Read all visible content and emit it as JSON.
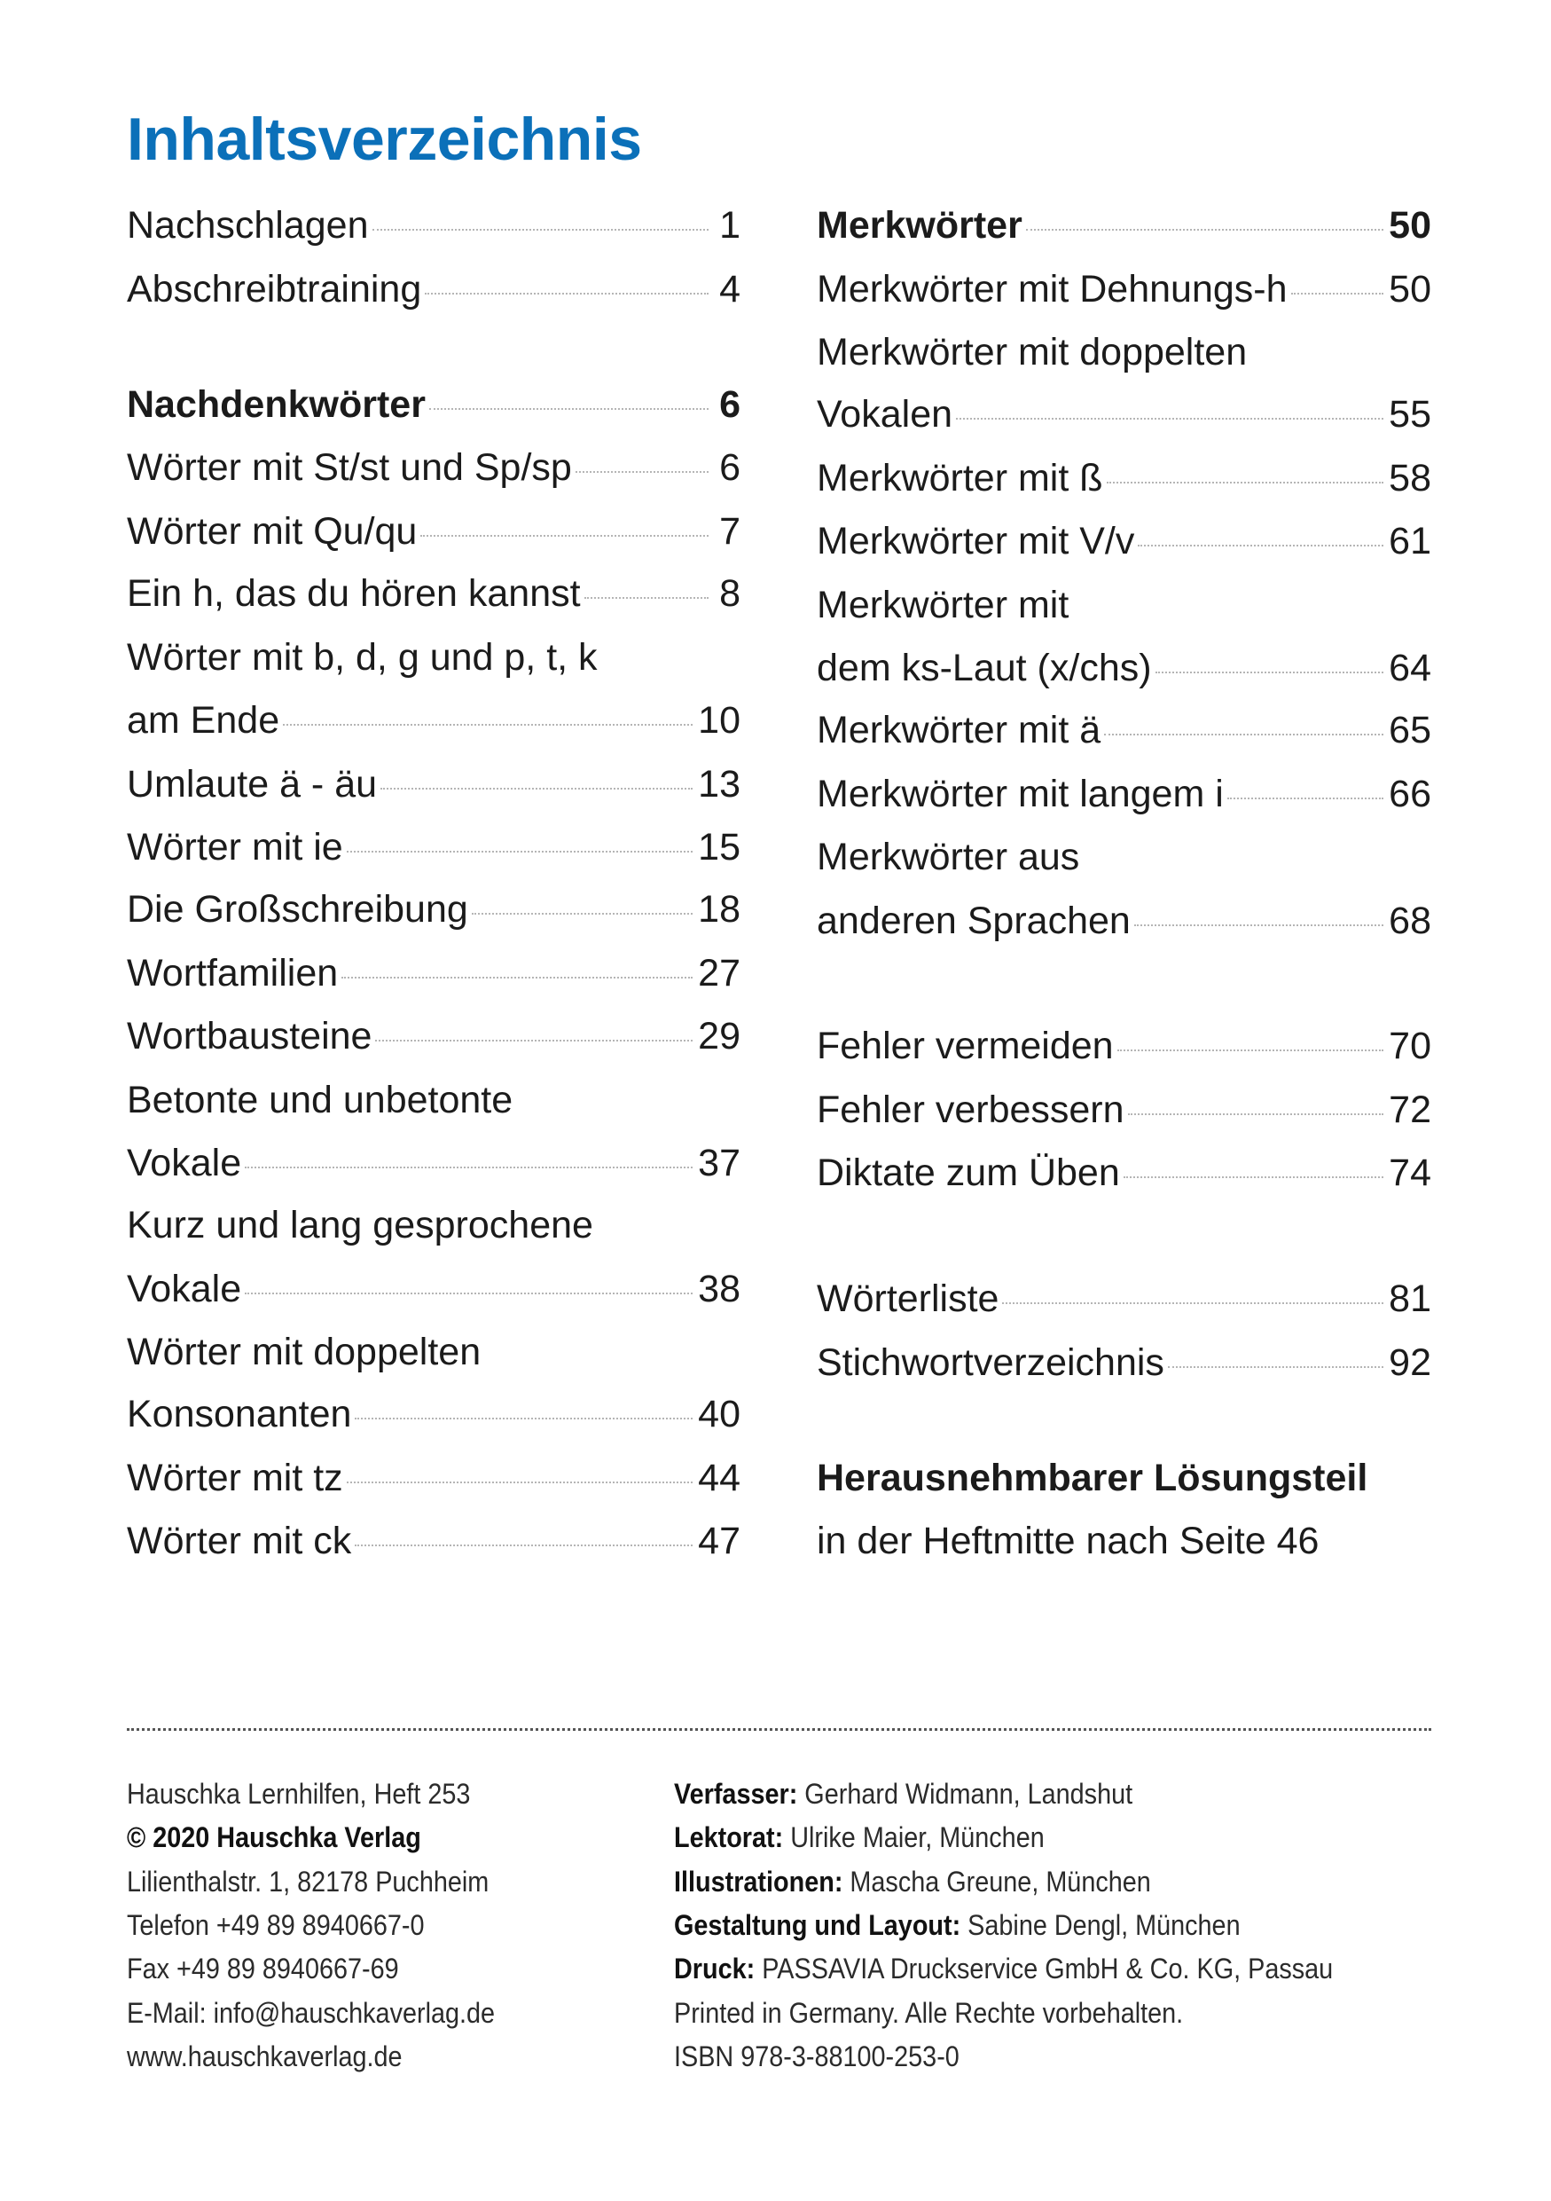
{
  "title": "Inhaltsverzeichnis",
  "toc": {
    "left": [
      {
        "lines": [
          "Nachschlagen"
        ],
        "page": "1"
      },
      {
        "lines": [
          "Abschreibtraining"
        ],
        "page": "4"
      },
      {
        "lines": [
          "Nachdenkwörter"
        ],
        "page": "6",
        "bold": true
      },
      {
        "lines": [
          "Wörter mit St/st und Sp/sp"
        ],
        "page": "6"
      },
      {
        "lines": [
          "Wörter mit Qu/qu"
        ],
        "page": "7"
      },
      {
        "lines": [
          "Ein h, das du hören kannst"
        ],
        "page": "8"
      },
      {
        "lines": [
          "Wörter mit b, d, g und p, t, k",
          "am Ende"
        ],
        "page": "10"
      },
      {
        "lines": [
          "Umlaute ä - äu"
        ],
        "page": "13"
      },
      {
        "lines": [
          "Wörter mit ie"
        ],
        "page": "15"
      },
      {
        "lines": [
          "Die Großschreibung"
        ],
        "page": "18"
      },
      {
        "lines": [
          "Wortfamilien"
        ],
        "page": "27"
      },
      {
        "lines": [
          "Wortbausteine"
        ],
        "page": "29"
      },
      {
        "lines": [
          "Betonte und unbetonte",
          "Vokale"
        ],
        "page": "37"
      },
      {
        "lines": [
          "Kurz und lang gesprochene",
          "Vokale"
        ],
        "page": "38"
      },
      {
        "lines": [
          "Wörter mit doppelten",
          "Konsonanten"
        ],
        "page": "40"
      },
      {
        "lines": [
          "Wörter mit tz"
        ],
        "page": "44"
      },
      {
        "lines": [
          "Wörter mit ck"
        ],
        "page": "47"
      }
    ],
    "right": [
      {
        "lines": [
          "Merkwörter"
        ],
        "page": "50",
        "bold": true
      },
      {
        "lines": [
          "Merkwörter mit Dehnungs-h"
        ],
        "page": "50"
      },
      {
        "lines": [
          "Merkwörter mit doppelten",
          "Vokalen"
        ],
        "page": "55"
      },
      {
        "lines": [
          "Merkwörter mit ß"
        ],
        "page": "58"
      },
      {
        "lines": [
          "Merkwörter mit V/v"
        ],
        "page": "61"
      },
      {
        "lines": [
          "Merkwörter mit",
          "dem ks-Laut (x/chs)"
        ],
        "page": "64"
      },
      {
        "lines": [
          "Merkwörter mit ä"
        ],
        "page": "65"
      },
      {
        "lines": [
          "Merkwörter mit langem i"
        ],
        "page": "66"
      },
      {
        "lines": [
          "Merkwörter aus",
          "anderen Sprachen"
        ],
        "page": "68"
      },
      {
        "lines": [
          "Fehler vermeiden"
        ],
        "page": "70"
      },
      {
        "lines": [
          "Fehler verbessern"
        ],
        "page": "72"
      },
      {
        "lines": [
          "Diktate zum Üben"
        ],
        "page": "74"
      },
      {
        "lines": [
          "Wörterliste"
        ],
        "page": "81"
      },
      {
        "lines": [
          "Stichwortverzeichnis"
        ],
        "page": "92"
      },
      {
        "lines": [
          "Herausnehmbarer Lösungsteil"
        ],
        "bold": true
      },
      {
        "lines": [
          "in der Heftmitte nach Seite 46"
        ]
      }
    ]
  },
  "imprint": {
    "left": [
      {
        "text": "Hauschka Lernhilfen, Heft 253"
      },
      {
        "text": "© 2020 Hauschka Verlag",
        "bold": true
      },
      {
        "text": "Lilienthalstr. 1, 82178 Puchheim"
      },
      {
        "text": "Telefon +49 89 8940667-0"
      },
      {
        "text": "Fax +49 89 8940667-69"
      },
      {
        "text": "E-Mail: info@hauschkaverlag.de"
      },
      {
        "text": "www.hauschkaverlag.de"
      }
    ],
    "right": [
      {
        "label": "Verfasser:",
        "text": " Gerhard Widmann, Landshut"
      },
      {
        "label": "Lektorat:",
        "text": " Ulrike Maier, München"
      },
      {
        "label": "Illustrationen:",
        "text": " Mascha Greune, München"
      },
      {
        "label": "Gestaltung und Layout:",
        "text": " Sabine Dengl, München"
      },
      {
        "label": "Druck:",
        "text": " PASSAVIA Druckservice GmbH & Co. KG, Passau"
      },
      {
        "text": "Printed in Germany. Alle Rechte vorbehalten."
      },
      {
        "text": "ISBN 978-3-88100-253-0"
      }
    ]
  },
  "colors": {
    "title": "#0b70b9",
    "text": "#1b1b1b"
  }
}
